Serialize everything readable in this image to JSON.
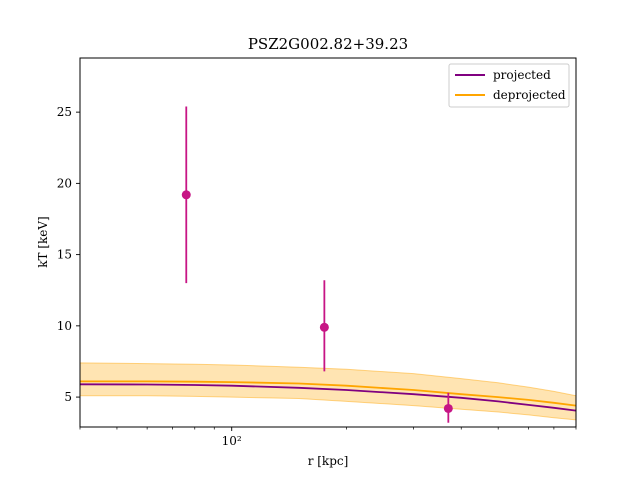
{
  "chart_data": {
    "type": "line",
    "title": "PSZ2G002.82+39.23",
    "xlabel": "r [kpc]",
    "ylabel": "kT [keV]",
    "xscale": "log",
    "xlim": [
      40,
      800
    ],
    "ylim": [
      2.9,
      28.8
    ],
    "grid": false,
    "legend_position": "top-right",
    "x_ticks": [
      {
        "value": 100,
        "label": "10²"
      }
    ],
    "y_ticks": [
      {
        "value": 5,
        "label": "5"
      },
      {
        "value": 10,
        "label": "10"
      },
      {
        "value": 15,
        "label": "15"
      },
      {
        "value": 20,
        "label": "20"
      },
      {
        "value": 25,
        "label": "25"
      }
    ],
    "data_points": {
      "color": "#c71585",
      "points": [
        {
          "x": 76,
          "y": 19.2,
          "ylow": 13.0,
          "yhigh": 25.4
        },
        {
          "x": 175,
          "y": 9.9,
          "ylow": 6.8,
          "yhigh": 13.2
        },
        {
          "x": 370,
          "y": 4.2,
          "ylow": 3.2,
          "yhigh": 5.3
        }
      ]
    },
    "series": [
      {
        "name": "projected",
        "color": "#800080",
        "x": [
          40,
          60,
          80,
          100,
          150,
          200,
          300,
          400,
          500,
          600,
          700,
          800
        ],
        "y": [
          5.9,
          5.88,
          5.85,
          5.8,
          5.65,
          5.5,
          5.2,
          4.95,
          4.7,
          4.45,
          4.25,
          4.05
        ]
      },
      {
        "name": "deprojected",
        "color": "#ffa500",
        "x": [
          40,
          60,
          80,
          100,
          150,
          200,
          300,
          400,
          500,
          600,
          700,
          800
        ],
        "y": [
          6.1,
          6.1,
          6.08,
          6.05,
          5.95,
          5.8,
          5.5,
          5.2,
          5.0,
          4.8,
          4.6,
          4.4
        ]
      }
    ],
    "band": {
      "color": "#ffa500",
      "opacity": 0.3,
      "x": [
        40,
        60,
        80,
        100,
        150,
        200,
        300,
        400,
        500,
        600,
        700,
        800
      ],
      "lower": [
        5.1,
        5.1,
        5.05,
        5.0,
        4.9,
        4.7,
        4.4,
        4.15,
        3.95,
        3.75,
        3.55,
        3.4
      ],
      "upper": [
        7.4,
        7.35,
        7.3,
        7.25,
        7.1,
        6.95,
        6.65,
        6.3,
        6.0,
        5.7,
        5.4,
        5.1
      ]
    }
  }
}
